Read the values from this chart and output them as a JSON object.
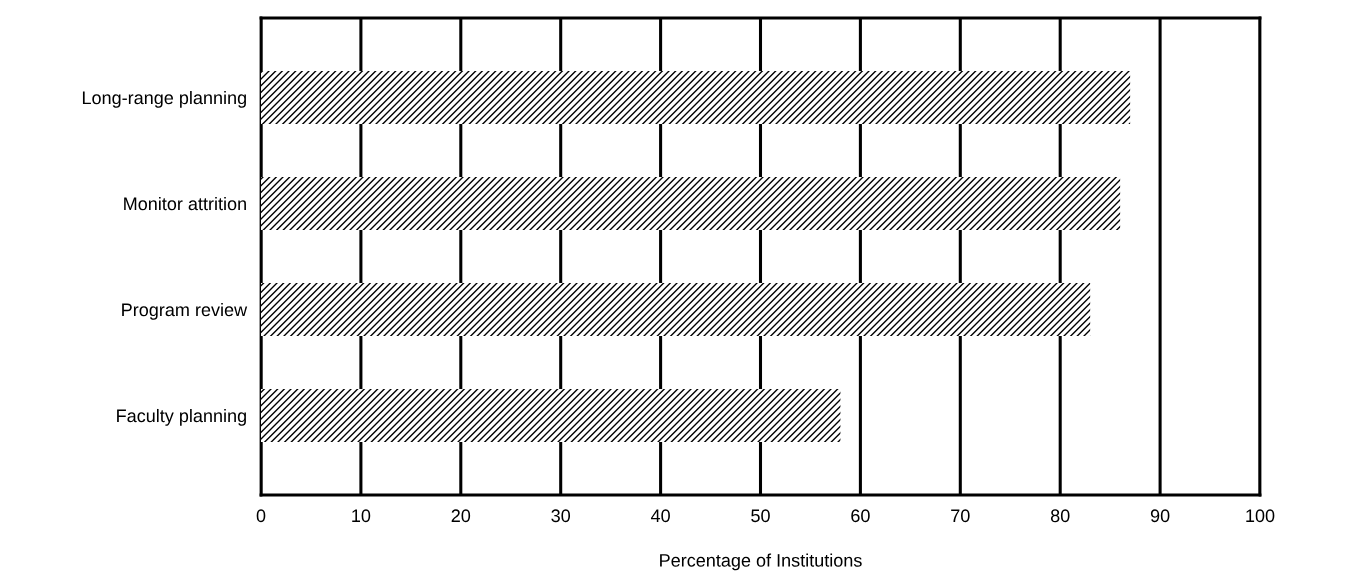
{
  "chart_data": {
    "type": "bar",
    "orientation": "horizontal",
    "xlabel": "Percentage of Institutions",
    "categories": [
      "Long-range planning",
      "Monitor attrition",
      "Program review",
      "Faculty planning"
    ],
    "values": [
      87,
      86,
      83,
      58
    ],
    "color": "#000000",
    "xlim": [
      0,
      100
    ],
    "xticks": [
      0,
      10,
      20,
      30,
      40,
      50,
      60,
      70,
      80,
      90,
      100
    ],
    "grid": "x"
  }
}
